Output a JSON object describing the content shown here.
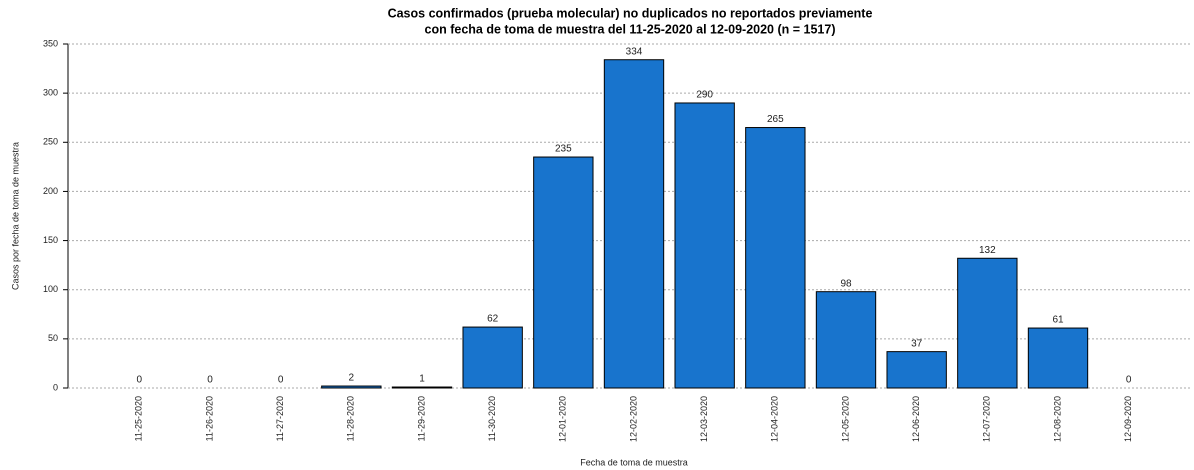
{
  "chart_data": {
    "type": "bar",
    "title": [
      "Casos confirmados (prueba molecular) no duplicados no reportados previamente",
      "con fecha de toma de muestra del 11-25-2020 al 12-09-2020 (n = 1517)"
    ],
    "x_label": "Fecha de toma de muestra",
    "y_label": "Casos por fecha de toma de muestra",
    "categories": [
      "11-25-2020",
      "11-26-2020",
      "11-27-2020",
      "11-28-2020",
      "11-29-2020",
      "11-30-2020",
      "12-01-2020",
      "12-02-2020",
      "12-03-2020",
      "12-04-2020",
      "12-05-2020",
      "12-06-2020",
      "12-07-2020",
      "12-08-2020",
      "12-09-2020"
    ],
    "values": [
      0,
      0,
      0,
      2,
      1,
      62,
      235,
      334,
      290,
      265,
      98,
      37,
      132,
      61,
      0
    ],
    "color": "#1874cd",
    "ylim": [
      0,
      350
    ],
    "yticks": [
      0,
      50,
      100,
      150,
      200,
      250,
      300,
      350
    ],
    "grid": true
  }
}
